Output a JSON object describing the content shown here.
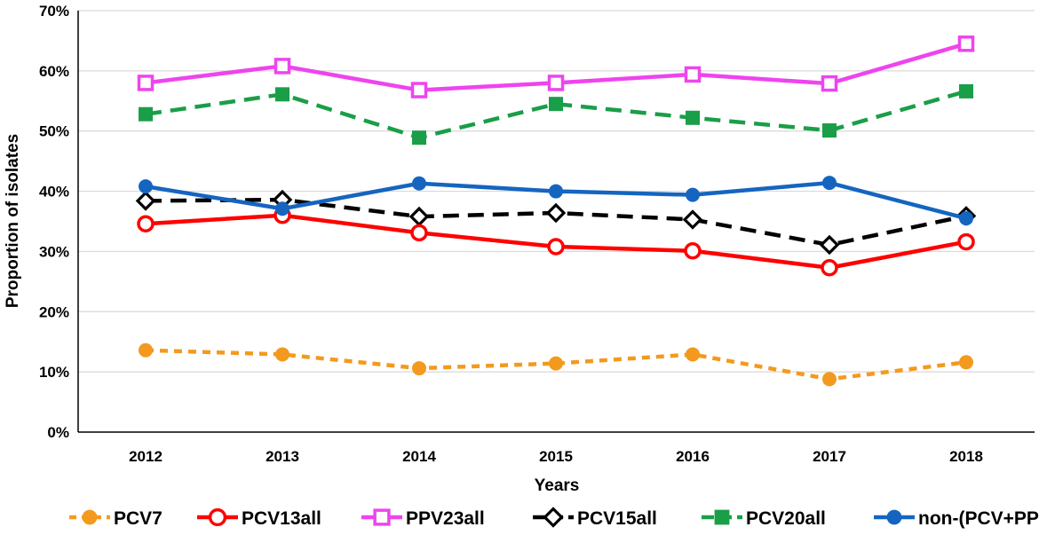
{
  "chart_data": {
    "type": "line",
    "title": "",
    "xlabel": "Years",
    "ylabel": "Proportion of isolates",
    "categories": [
      "2012",
      "2013",
      "2014",
      "2015",
      "2016",
      "2017",
      "2018"
    ],
    "ylim": [
      0,
      70
    ],
    "yticks": [
      0,
      10,
      20,
      30,
      40,
      50,
      60,
      70
    ],
    "ytick_labels": [
      "0%",
      "10%",
      "20%",
      "30%",
      "40%",
      "50%",
      "60%",
      "70%"
    ],
    "grid": "horizontal",
    "legend_position": "bottom",
    "series": [
      {
        "name": "PCV7",
        "values": [
          13.6,
          12.9,
          10.6,
          11.4,
          12.9,
          8.8,
          11.6
        ],
        "color": "#f39a1e",
        "line": "dashed",
        "marker": "circle-filled"
      },
      {
        "name": "PCV13all",
        "values": [
          34.6,
          36.0,
          33.1,
          30.8,
          30.1,
          27.3,
          31.6
        ],
        "color": "#ff0000",
        "line": "solid",
        "marker": "circle-open"
      },
      {
        "name": "PPV23all",
        "values": [
          58.0,
          60.8,
          56.8,
          58.0,
          59.4,
          57.9,
          64.5
        ],
        "color": "#ee44ee",
        "line": "solid",
        "marker": "square-open"
      },
      {
        "name": "PCV15all",
        "values": [
          38.4,
          38.6,
          35.8,
          36.4,
          35.3,
          31.1,
          35.9
        ],
        "color": "#000000",
        "line": "dashed",
        "marker": "diamond-open"
      },
      {
        "name": "PCV20all",
        "values": [
          52.8,
          56.1,
          48.9,
          54.5,
          52.2,
          50.1,
          56.6
        ],
        "color": "#1a9e48",
        "line": "dashed",
        "marker": "square-filled"
      },
      {
        "name": "non-(PCV+PPV)",
        "values": [
          40.8,
          37.1,
          41.3,
          40.0,
          39.4,
          41.4,
          35.5
        ],
        "color": "#1565c0",
        "line": "solid",
        "marker": "circle-filled"
      }
    ]
  }
}
